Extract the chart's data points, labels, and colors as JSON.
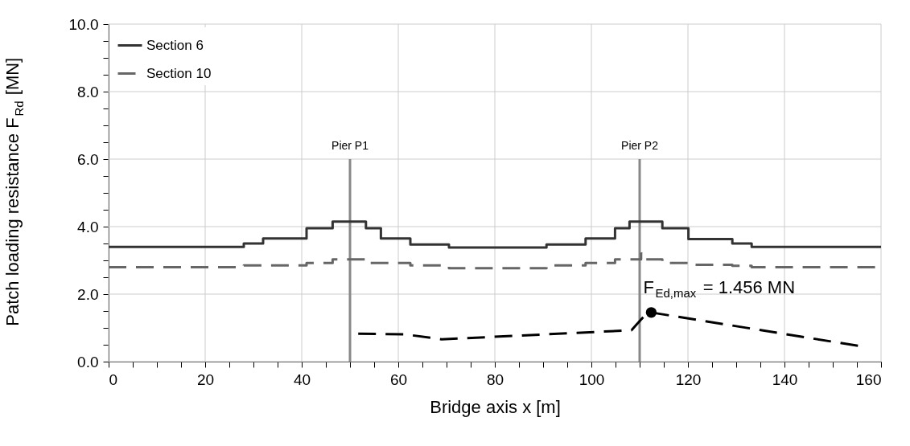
{
  "chart_data": {
    "type": "step",
    "xlabel": "Bridge axis x [m]",
    "ylabel": "Patch loading resistance F$_{Rd}$ [MN]",
    "xlim": [
      0,
      160
    ],
    "ylim": [
      0,
      10
    ],
    "xticks": [
      0,
      {
        "value": 5,
        "label": null
      },
      {
        "value": 10,
        "label": null
      },
      {
        "value": 15,
        "label": null
      },
      20,
      {
        "value": 25,
        "label": null
      },
      {
        "value": 30,
        "label": null
      },
      {
        "value": 35,
        "label": null
      },
      40,
      {
        "value": 45,
        "label": null
      },
      {
        "value": 50,
        "label": null
      },
      {
        "value": 55,
        "label": null
      },
      60,
      {
        "value": 65,
        "label": null
      },
      {
        "value": 70,
        "label": null
      },
      {
        "value": 75,
        "label": null
      },
      80,
      {
        "value": 85,
        "label": null
      },
      {
        "value": 90,
        "label": null
      },
      {
        "value": 95,
        "label": null
      },
      100,
      {
        "value": 105,
        "label": null
      },
      {
        "value": 110,
        "label": null
      },
      {
        "value": 115,
        "label": null
      },
      120,
      {
        "value": 125,
        "label": null
      },
      {
        "value": 130,
        "label": null
      },
      {
        "value": 135,
        "label": null
      },
      140,
      {
        "value": 145,
        "label": null
      },
      {
        "value": 150,
        "label": null
      },
      {
        "value": 155,
        "label": null
      },
      160
    ],
    "yticks": [
      {
        "value": 0,
        "label": "0.0"
      },
      {
        "value": 0.5,
        "label": null
      },
      {
        "value": 1,
        "label": null
      },
      {
        "value": 1.5,
        "label": null
      },
      {
        "value": 2,
        "label": "2.0"
      },
      {
        "value": 2.5,
        "label": null
      },
      {
        "value": 3,
        "label": null
      },
      {
        "value": 3.5,
        "label": null
      },
      {
        "value": 4,
        "label": "4.0"
      },
      {
        "value": 4.5,
        "label": null
      },
      {
        "value": 5,
        "label": null
      },
      {
        "value": 5.5,
        "label": null
      },
      {
        "value": 6,
        "label": "6.0"
      },
      {
        "value": 6.5,
        "label": null
      },
      {
        "value": 7,
        "label": null
      },
      {
        "value": 7.5,
        "label": null
      },
      {
        "value": 8,
        "label": "8.0"
      },
      {
        "value": 8.5,
        "label": null
      },
      {
        "value": 9,
        "label": null
      },
      {
        "value": 9.5,
        "label": null
      },
      {
        "value": 10,
        "label": "10.0"
      }
    ],
    "grid": true,
    "legend": "top left",
    "series": [
      {
        "name": "Section 6",
        "color": "#333333",
        "line_style": "solid",
        "x": [
          0,
          28,
          32,
          41,
          46.4,
          53.3,
          56.4,
          62.5,
          70.5,
          90.7,
          98.8,
          104.9,
          107.9,
          114.7,
          120.1,
          129.2,
          133.2,
          160
        ],
        "values": [
          3.4,
          3.5,
          3.65,
          3.95,
          4.15,
          3.95,
          3.65,
          3.47,
          3.38,
          3.47,
          3.65,
          3.95,
          4.15,
          3.95,
          3.63,
          3.5,
          3.4,
          3.4
        ]
      },
      {
        "name": "Section 10",
        "color": "#666666",
        "line_style": "dashed",
        "x": [
          0,
          28,
          41,
          46.4,
          53.3,
          62.5,
          70.5,
          90.7,
          98.8,
          104.9,
          110.3,
          110.8,
          114.7,
          120.1,
          129.2,
          133.2,
          160
        ],
        "values": [
          2.8,
          2.85,
          2.92,
          3.03,
          2.92,
          2.85,
          2.77,
          2.85,
          2.92,
          3.03,
          3.2,
          3.03,
          2.92,
          2.87,
          2.84,
          2.8,
          2.8
        ]
      },
      {
        "name": "Pier P1",
        "type": "line",
        "color": "#888888",
        "line_style": "solid",
        "x": [
          50,
          50
        ],
        "values": [
          0,
          6
        ]
      },
      {
        "name": "Pier P2",
        "type": "line",
        "color": "#888888",
        "line_style": "solid",
        "x": [
          110,
          110
        ],
        "values": [
          0,
          6
        ]
      },
      {
        "type": "line",
        "color": "#000000",
        "line_style": "dashed",
        "x": [
          51.7,
          61.3,
          69.0,
          108.3,
          109.0,
          110.9,
          112.4,
          155.6
        ],
        "values": [
          0.83,
          0.81,
          0.66,
          0.93,
          1.04,
          1.34,
          1.456,
          0.46
        ]
      },
      {
        "type": "scatter",
        "color": "#000000",
        "marker": "circle",
        "x": [
          112.4
        ],
        "values": [
          1.456
        ]
      }
    ],
    "annotations": [
      {
        "text": "F$_{Ed,max}$ = 1.456 MN",
        "x": 112.4,
        "y": 1.456
      }
    ]
  }
}
